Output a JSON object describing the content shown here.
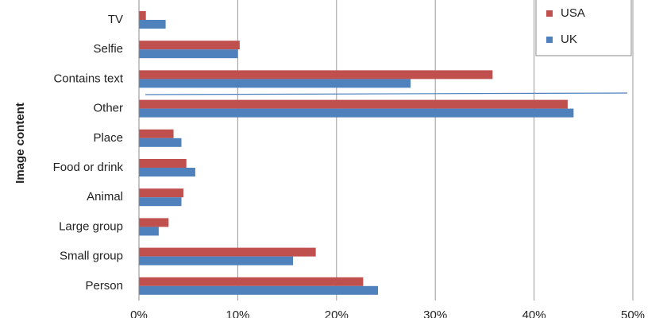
{
  "chart_data": {
    "type": "hbar",
    "y_label": "Image content",
    "categories": [
      "TV",
      "Selfie",
      "Contains text",
      "Other",
      "Place",
      "Food or drink",
      "Animal",
      "Large group",
      "Small group",
      "Person"
    ],
    "series": [
      {
        "name": "USA",
        "color": "#c0504d",
        "values": [
          0.7,
          10.2,
          35.8,
          43.4,
          3.5,
          4.8,
          4.5,
          3.0,
          17.9,
          22.7
        ]
      },
      {
        "name": "UK",
        "color": "#4f81bd",
        "values": [
          2.7,
          10.0,
          27.5,
          44.0,
          4.3,
          5.7,
          4.3,
          2.0,
          15.6,
          24.2
        ]
      }
    ],
    "xlim": [
      0,
      50
    ],
    "xticks": [
      {
        "value": 0,
        "label": "0%"
      },
      {
        "value": 10,
        "label": "10%"
      },
      {
        "value": 20,
        "label": "20%"
      },
      {
        "value": 30,
        "label": "30%"
      },
      {
        "value": 40,
        "label": "40%"
      },
      {
        "value": 50,
        "label": "50%"
      }
    ],
    "grid": true
  }
}
